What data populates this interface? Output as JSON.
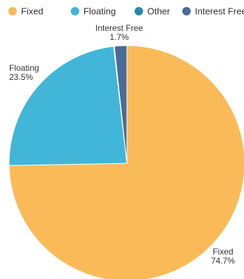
{
  "chart_data": {
    "type": "pie",
    "title": "",
    "legend_position": "top",
    "categories": [
      "Fixed",
      "Floating",
      "Other",
      "Interest Free"
    ],
    "values": [
      74.7,
      23.5,
      0.1,
      1.7
    ],
    "value_labels": [
      "74.7%",
      "23.5%",
      "",
      "1.7%"
    ],
    "colors": [
      "#FBBA58",
      "#41B6D8",
      "#2B85B4",
      "#4A6A99"
    ],
    "start": "12 o'clock",
    "direction": "clockwise"
  }
}
